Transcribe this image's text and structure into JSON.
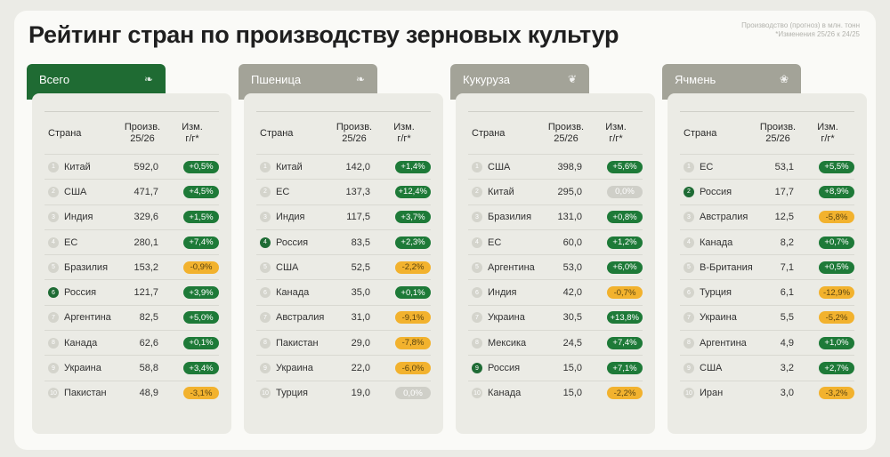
{
  "title": "Рейтинг стран по производству зерновых культур",
  "note_line1": "Производство (прогноз) в млн. тонн",
  "note_line2": "*Изменения 25/26 к 24/25",
  "headers": {
    "country": "Страна",
    "prod_line1": "Произв.",
    "prod_line2": "25/26",
    "chg_line1": "Изм.",
    "chg_line2": "г/г*"
  },
  "colors": {
    "up": "#1e7a38",
    "down": "#f2b22e",
    "zero": "#cfcfc8",
    "tab_total": "#1f6b33",
    "tab_other": "#a3a398"
  },
  "panels": [
    {
      "label": "Всего",
      "icon": "wheat-icon",
      "tab_color": "#1f6b33",
      "rows": [
        {
          "rank": "1",
          "country": "Китай",
          "value": "592,0",
          "change": "+0,5%",
          "trend": "up",
          "hl": false
        },
        {
          "rank": "2",
          "country": "США",
          "value": "471,7",
          "change": "+4,5%",
          "trend": "up",
          "hl": false
        },
        {
          "rank": "3",
          "country": "Индия",
          "value": "329,6",
          "change": "+1,5%",
          "trend": "up",
          "hl": false
        },
        {
          "rank": "4",
          "country": "ЕС",
          "value": "280,1",
          "change": "+7,4%",
          "trend": "up",
          "hl": false
        },
        {
          "rank": "5",
          "country": "Бразилия",
          "value": "153,2",
          "change": "-0,9%",
          "trend": "down",
          "hl": false
        },
        {
          "rank": "6",
          "country": "Россия",
          "value": "121,7",
          "change": "+3,9%",
          "trend": "up",
          "hl": true
        },
        {
          "rank": "7",
          "country": "Аргентина",
          "value": "82,5",
          "change": "+5,0%",
          "trend": "up",
          "hl": false
        },
        {
          "rank": "8",
          "country": "Канада",
          "value": "62,6",
          "change": "+0,1%",
          "trend": "up",
          "hl": false
        },
        {
          "rank": "9",
          "country": "Украина",
          "value": "58,8",
          "change": "+3,4%",
          "trend": "up",
          "hl": false
        },
        {
          "rank": "10",
          "country": "Пакистан",
          "value": "48,9",
          "change": "-3,1%",
          "trend": "down",
          "hl": false
        }
      ]
    },
    {
      "label": "Пшеница",
      "icon": "wheat-icon",
      "tab_color": "#a3a398",
      "rows": [
        {
          "rank": "1",
          "country": "Китай",
          "value": "142,0",
          "change": "+1,4%",
          "trend": "up",
          "hl": false
        },
        {
          "rank": "2",
          "country": "ЕС",
          "value": "137,3",
          "change": "+12,4%",
          "trend": "up",
          "hl": false
        },
        {
          "rank": "3",
          "country": "Индия",
          "value": "117,5",
          "change": "+3,7%",
          "trend": "up",
          "hl": false
        },
        {
          "rank": "4",
          "country": "Россия",
          "value": "83,5",
          "change": "+2,3%",
          "trend": "up",
          "hl": true
        },
        {
          "rank": "5",
          "country": "США",
          "value": "52,5",
          "change": "-2,2%",
          "trend": "down",
          "hl": false
        },
        {
          "rank": "6",
          "country": "Канада",
          "value": "35,0",
          "change": "+0,1%",
          "trend": "up",
          "hl": false
        },
        {
          "rank": "7",
          "country": "Австралия",
          "value": "31,0",
          "change": "-9,1%",
          "trend": "down",
          "hl": false
        },
        {
          "rank": "8",
          "country": "Пакистан",
          "value": "29,0",
          "change": "-7,8%",
          "trend": "down",
          "hl": false
        },
        {
          "rank": "9",
          "country": "Украина",
          "value": "22,0",
          "change": "-6,0%",
          "trend": "down",
          "hl": false
        },
        {
          "rank": "10",
          "country": "Турция",
          "value": "19,0",
          "change": "0,0%",
          "trend": "zero",
          "hl": false
        }
      ]
    },
    {
      "label": "Кукуруза",
      "icon": "corn-icon",
      "tab_color": "#a3a398",
      "rows": [
        {
          "rank": "1",
          "country": "США",
          "value": "398,9",
          "change": "+5,6%",
          "trend": "up",
          "hl": false
        },
        {
          "rank": "2",
          "country": "Китай",
          "value": "295,0",
          "change": "0,0%",
          "trend": "zero",
          "hl": false
        },
        {
          "rank": "3",
          "country": "Бразилия",
          "value": "131,0",
          "change": "+0,8%",
          "trend": "up",
          "hl": false
        },
        {
          "rank": "4",
          "country": "ЕС",
          "value": "60,0",
          "change": "+1,2%",
          "trend": "up",
          "hl": false
        },
        {
          "rank": "5",
          "country": "Аргентина",
          "value": "53,0",
          "change": "+6,0%",
          "trend": "up",
          "hl": false
        },
        {
          "rank": "6",
          "country": "Индия",
          "value": "42,0",
          "change": "-0,7%",
          "trend": "down",
          "hl": false
        },
        {
          "rank": "7",
          "country": "Украина",
          "value": "30,5",
          "change": "+13,8%",
          "trend": "up",
          "hl": false
        },
        {
          "rank": "8",
          "country": "Мексика",
          "value": "24,5",
          "change": "+7,4%",
          "trend": "up",
          "hl": false
        },
        {
          "rank": "9",
          "country": "Россия",
          "value": "15,0",
          "change": "+7,1%",
          "trend": "up",
          "hl": true
        },
        {
          "rank": "10",
          "country": "Канада",
          "value": "15,0",
          "change": "-2,2%",
          "trend": "down",
          "hl": false
        }
      ]
    },
    {
      "label": "Ячмень",
      "icon": "barley-icon",
      "tab_color": "#a3a398",
      "rows": [
        {
          "rank": "1",
          "country": "ЕС",
          "value": "53,1",
          "change": "+5,5%",
          "trend": "up",
          "hl": false
        },
        {
          "rank": "2",
          "country": "Россия",
          "value": "17,7",
          "change": "+8,9%",
          "trend": "up",
          "hl": true
        },
        {
          "rank": "3",
          "country": "Австралия",
          "value": "12,5",
          "change": "-5,8%",
          "trend": "down",
          "hl": false
        },
        {
          "rank": "4",
          "country": "Канада",
          "value": "8,2",
          "change": "+0,7%",
          "trend": "up",
          "hl": false
        },
        {
          "rank": "5",
          "country": "В-Британия",
          "value": "7,1",
          "change": "+0,5%",
          "trend": "up",
          "hl": false
        },
        {
          "rank": "6",
          "country": "Турция",
          "value": "6,1",
          "change": "-12,9%",
          "trend": "down",
          "hl": false
        },
        {
          "rank": "7",
          "country": "Украина",
          "value": "5,5",
          "change": "-5,2%",
          "trend": "down",
          "hl": false
        },
        {
          "rank": "8",
          "country": "Аргентина",
          "value": "4,9",
          "change": "+1,0%",
          "trend": "up",
          "hl": false
        },
        {
          "rank": "9",
          "country": "США",
          "value": "3,2",
          "change": "+2,7%",
          "trend": "up",
          "hl": false
        },
        {
          "rank": "10",
          "country": "Иран",
          "value": "3,0",
          "change": "-3,2%",
          "trend": "down",
          "hl": false
        }
      ]
    }
  ]
}
